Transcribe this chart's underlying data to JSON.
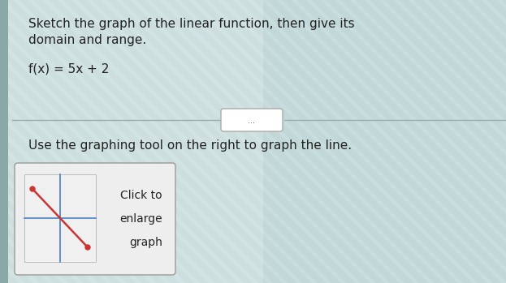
{
  "title_line1": "Sketch the graph of the linear function, then give its",
  "title_line2": "domain and range.",
  "function_label": "f(x) = 5x + 2",
  "instruction": "Use the graphing tool on the right to graph the line.",
  "button_text_line1": "Click to",
  "button_text_line2": "enlarge",
  "button_text_line3": "graph",
  "bg_color": "#c8dede",
  "stripe_color1": "#d8eaea",
  "stripe_color2": "#b8cece",
  "left_panel_color": "#dde8e8",
  "divider_color": "#9ab0b0",
  "text_color": "#222222",
  "pill_bg": "#ffffff",
  "pill_border": "#aaaaaa",
  "button_bg": "#eeeeee",
  "button_border": "#999999",
  "mini_graph_bg": "#f0f0f0",
  "mini_graph_axis_color": "#5588cc",
  "mini_graph_line_color": "#cc3333",
  "mini_graph_dot_color": "#cc3333",
  "font_size_title": 11,
  "font_size_func": 11,
  "font_size_instr": 11,
  "font_size_btn": 10
}
